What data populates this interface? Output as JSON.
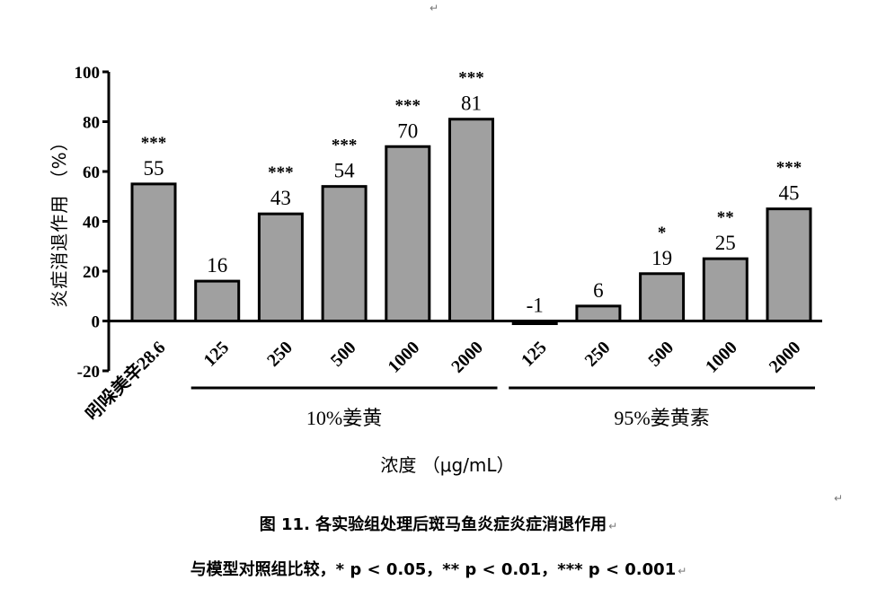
{
  "chart_data": {
    "type": "bar",
    "ylabel": "炎症消退作用 （%）",
    "xlabel": "浓度 （μg/mL）",
    "ylim": [
      -20,
      100
    ],
    "yticks": [
      -20,
      0,
      20,
      40,
      60,
      80,
      100
    ],
    "categories": [
      "吲哚美辛28.6",
      "125",
      "250",
      "500",
      "1000",
      "2000",
      "125",
      "250",
      "500",
      "1000",
      "2000"
    ],
    "values": [
      55,
      16,
      43,
      54,
      70,
      81,
      -1,
      6,
      19,
      25,
      45
    ],
    "value_labels": [
      "55",
      "16",
      "43",
      "54",
      "70",
      "81",
      "-1",
      "6",
      "19",
      "25",
      "45"
    ],
    "significance": [
      "***",
      "",
      "***",
      "***",
      "***",
      "***",
      "",
      "",
      "*",
      "**",
      "***"
    ],
    "groups": [
      {
        "label": "10%姜黄",
        "from": 1,
        "to": 5
      },
      {
        "label": "95%姜黄素",
        "from": 6,
        "to": 10
      }
    ],
    "bar_color": "#a0a0a0",
    "grid": false,
    "legend": "none"
  },
  "caption": {
    "line1": "图 11. 各实验组处理后斑马鱼炎症炎症消退作用",
    "line2": "与模型对照组比较，* p < 0.05，** p < 0.01，*** p < 0.001"
  },
  "marks": {
    "return_glyph": "↵"
  }
}
